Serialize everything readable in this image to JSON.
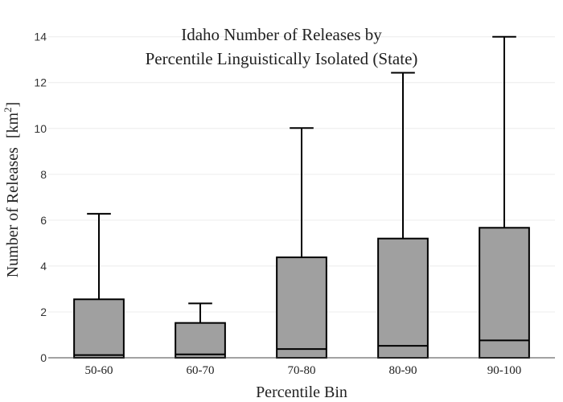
{
  "chart_data": {
    "type": "box",
    "title_lines": [
      "Idaho Number of Releases by",
      "Percentile Linguistically Isolated (State)"
    ],
    "xlabel": "Percentile Bin",
    "ylabel": "Number of Releases",
    "ylabel_unit_base": "[km",
    "ylabel_unit_sup": "2",
    "ylabel_unit_close": "]",
    "ylim": [
      0,
      14.2
    ],
    "yticks": [
      0,
      2,
      4,
      6,
      8,
      10,
      12,
      14
    ],
    "grid": true,
    "box_color": "#a0a0a0",
    "categories": [
      "50-60",
      "60-70",
      "70-80",
      "80-90",
      "90-100"
    ],
    "boxes": [
      {
        "category": "50-60",
        "low": 0,
        "q1": 0,
        "median": 0.12,
        "q3": 2.55,
        "high": 6.28
      },
      {
        "category": "60-70",
        "low": 0,
        "q1": 0,
        "median": 0.15,
        "q3": 1.52,
        "high": 2.37
      },
      {
        "category": "70-80",
        "low": 0,
        "q1": 0,
        "median": 0.38,
        "q3": 4.38,
        "high": 10.02
      },
      {
        "category": "80-90",
        "low": 0,
        "q1": 0,
        "median": 0.52,
        "q3": 5.2,
        "high": 12.43
      },
      {
        "category": "90-100",
        "low": 0,
        "q1": 0,
        "median": 0.76,
        "q3": 5.67,
        "high": 14.0
      }
    ]
  }
}
